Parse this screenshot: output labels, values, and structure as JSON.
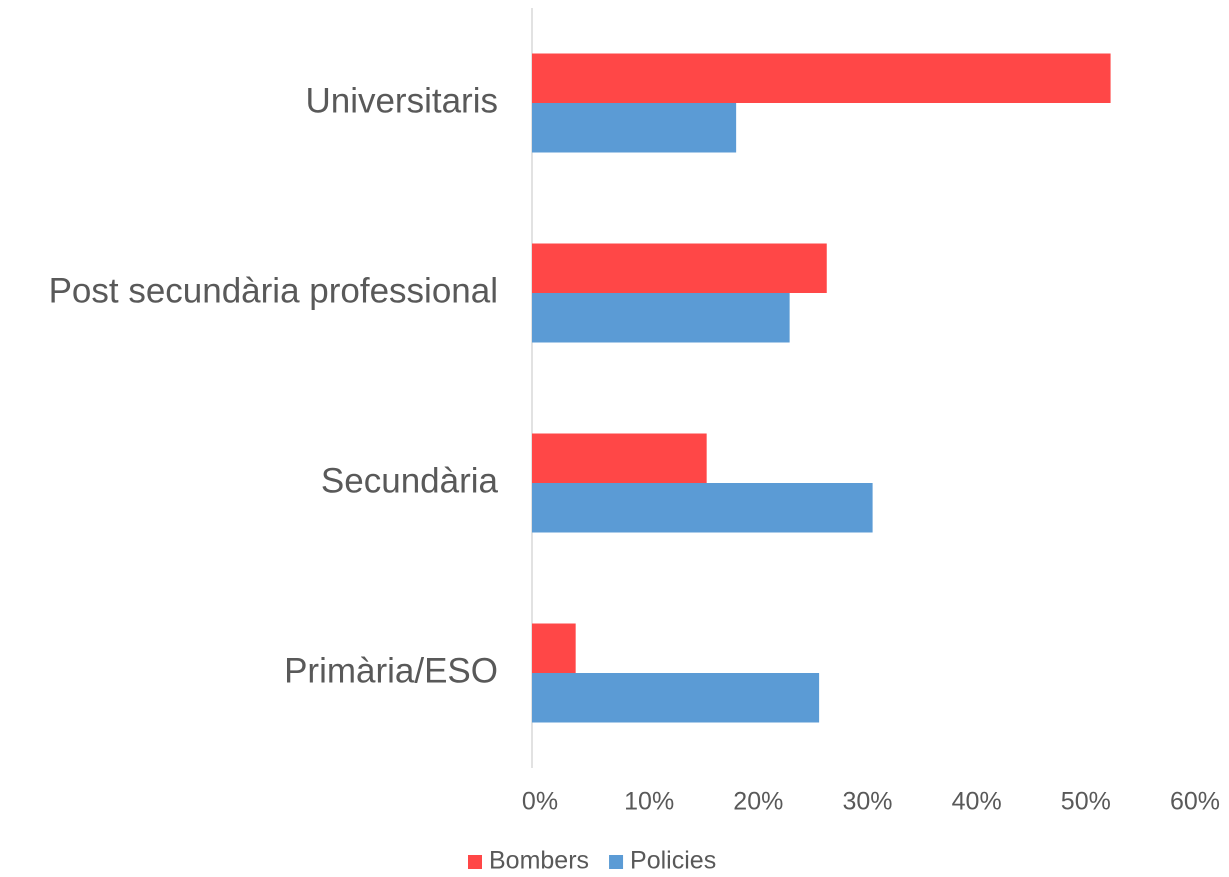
{
  "chart_data": {
    "type": "bar",
    "orientation": "horizontal",
    "categories": [
      "Universitaris",
      "Post secundària professional",
      "Secundària",
      "Primària/ESO"
    ],
    "series": [
      {
        "name": "Bombers",
        "color": "#ff4747",
        "values": [
          53,
          27,
          16,
          4
        ]
      },
      {
        "name": "Policies",
        "color": "#5b9bd5",
        "values": [
          18.7,
          23.6,
          31.2,
          26.3
        ]
      }
    ],
    "xlim": [
      0,
      60
    ],
    "xticks": [
      {
        "value": 0,
        "label": "0%"
      },
      {
        "value": 10,
        "label": "10%"
      },
      {
        "value": 20,
        "label": "20%"
      },
      {
        "value": 30,
        "label": "30%"
      },
      {
        "value": 40,
        "label": "40%"
      },
      {
        "value": 50,
        "label": "50%"
      },
      {
        "value": 60,
        "label": "60%"
      }
    ],
    "legend": "bottom"
  }
}
